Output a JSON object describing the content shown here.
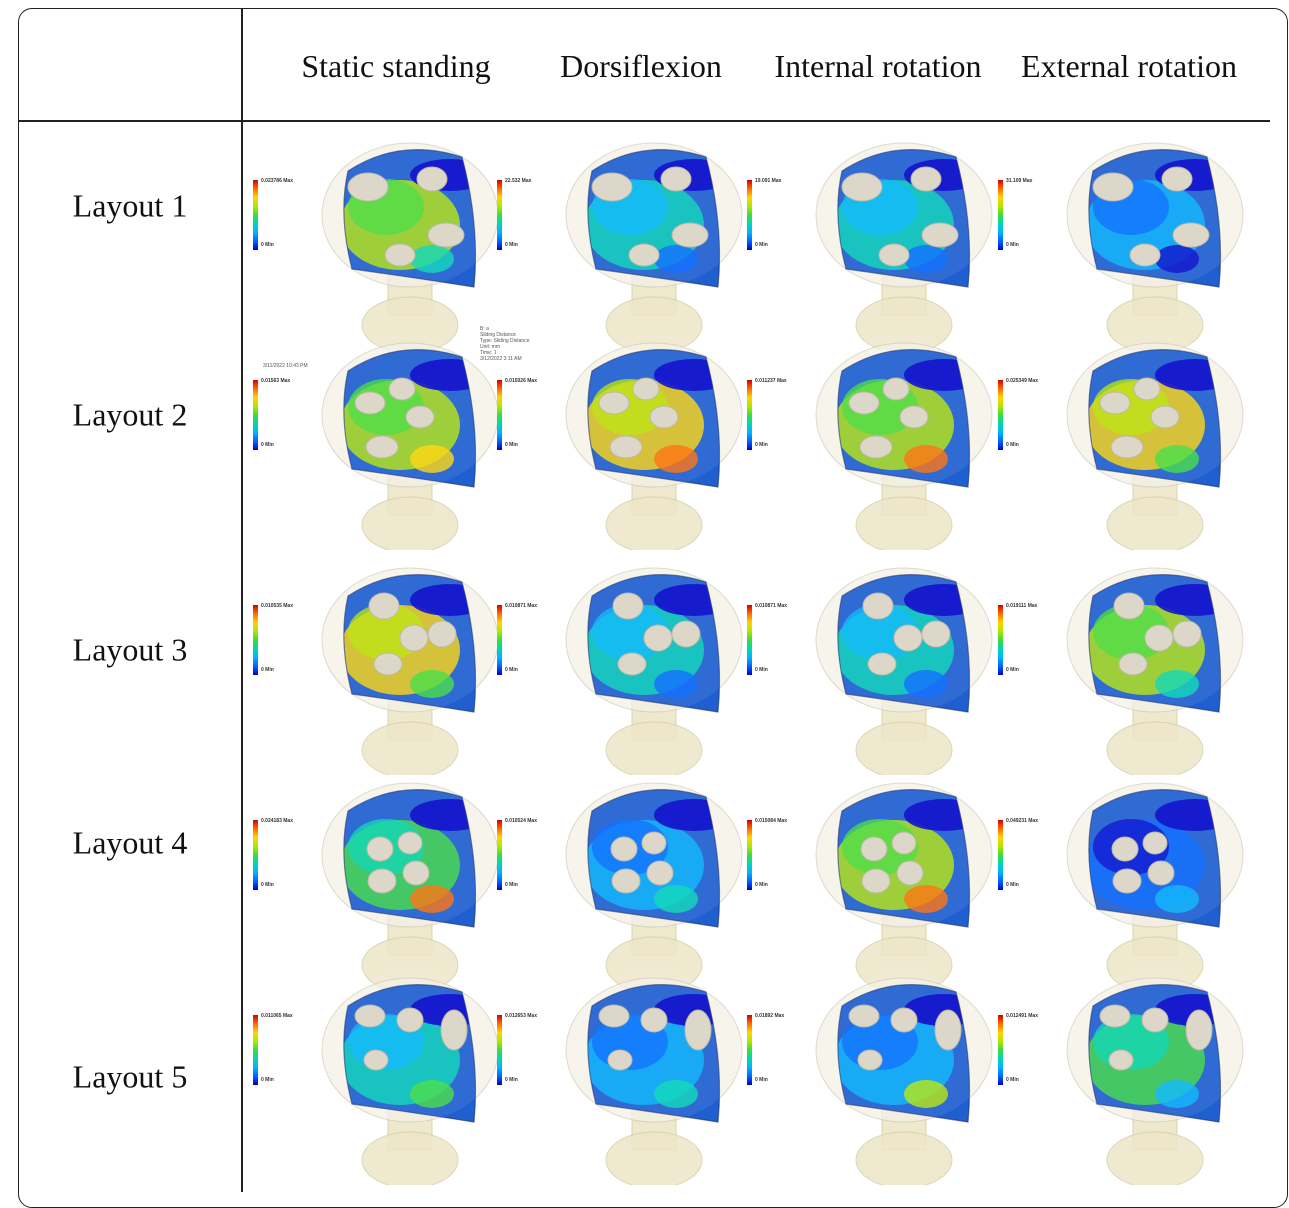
{
  "columns": [
    "Static standing",
    "Dorsiflexion",
    "Internal rotation",
    "External rotation"
  ],
  "rows": [
    "Layout 1",
    "Layout 2",
    "Layout 3",
    "Layout 4",
    "Layout 5"
  ],
  "notes": {
    "row2_col1": "3/11/2022 10:43 PM",
    "row2_col2": "B: a\nSliding Distance\nType: Sliding Distance\nUnit: mm\nTime: 1\n3/12/2022 3:11 AM"
  },
  "legends": [
    [
      "0.023786 Max",
      "0 Min"
    ],
    [
      "22.532 Max",
      "0 Min"
    ],
    [
      "19.091 Max",
      "0 Min"
    ],
    [
      "31.109 Max",
      "0 Min"
    ],
    [
      "0.01563 Max",
      "0 Min"
    ],
    [
      "0.015026 Max",
      "0 Min"
    ],
    [
      "0.011237 Max",
      "0 Min"
    ],
    [
      "0.025349 Max",
      "0 Min"
    ],
    [
      "0.010535 Max",
      "0 Min"
    ],
    [
      "0.010871 Max",
      "0 Min"
    ],
    [
      "0.010871 Max",
      "0 Min"
    ],
    [
      "0.019111 Max",
      "0 Min"
    ],
    [
      "0.024183 Max",
      "0 Min"
    ],
    [
      "0.010524 Max",
      "0 Min"
    ],
    [
      "0.015084 Max",
      "0 Min"
    ],
    [
      "0.049231 Max",
      "0 Min"
    ],
    [
      "0.011065 Max",
      "0 Min"
    ],
    [
      "0.012653 Max",
      "0 Min"
    ],
    [
      "0.01892 Max",
      "0 Min"
    ],
    [
      "0.012491 Max",
      "0 Min"
    ]
  ],
  "colors": {
    "legend_scale": [
      "#d40000",
      "#ff6a00",
      "#ffd400",
      "#b4e600",
      "#3cdc3c",
      "#00d6b4",
      "#00b4ff",
      "#0064ff",
      "#0000c8"
    ],
    "bone": "#ede6c8",
    "implant_base": "#1f5fd0"
  }
}
